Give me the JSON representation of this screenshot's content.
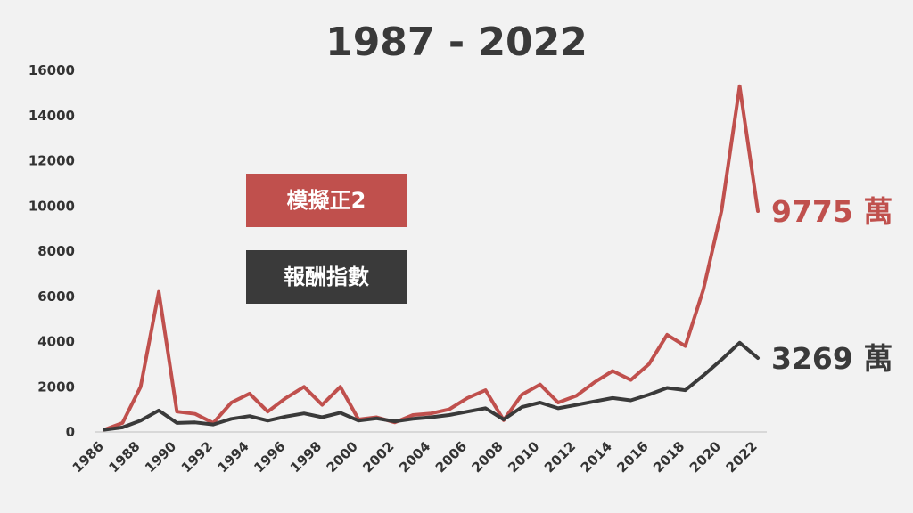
{
  "chart_data": {
    "type": "line",
    "title": "1987 - 2022",
    "xlabel": "",
    "ylabel": "",
    "xlim": [
      1986,
      2022
    ],
    "ylim": [
      0,
      16000
    ],
    "yticks": [
      "0",
      "2000",
      "4000",
      "6000",
      "8000",
      "10000",
      "12000",
      "14000",
      "16000"
    ],
    "xticks": [
      "1986",
      "1988",
      "1990",
      "1992",
      "1994",
      "1996",
      "1998",
      "2000",
      "2002",
      "2004",
      "2006",
      "2008",
      "2010",
      "2012",
      "2014",
      "2016",
      "2018",
      "2020",
      "2022"
    ],
    "grid": false,
    "legend_position": "center-left",
    "x": [
      1986,
      1987,
      1988,
      1989,
      1990,
      1991,
      1992,
      1993,
      1994,
      1995,
      1996,
      1997,
      1998,
      1999,
      2000,
      2001,
      2002,
      2003,
      2004,
      2005,
      2006,
      2007,
      2008,
      2009,
      2010,
      2011,
      2012,
      2013,
      2014,
      2015,
      2016,
      2017,
      2018,
      2019,
      2020,
      2021,
      2022
    ],
    "series": [
      {
        "name": "模擬正2",
        "color": "#c0504d",
        "end_label": "9775 萬",
        "values": [
          100,
          400,
          2000,
          6200,
          900,
          800,
          400,
          1300,
          1700,
          900,
          1500,
          2000,
          1200,
          2000,
          550,
          650,
          420,
          750,
          820,
          1000,
          1500,
          1850,
          520,
          1650,
          2100,
          1300,
          1600,
          2200,
          2700,
          2300,
          3000,
          4300,
          3800,
          6300,
          9800,
          15300,
          9775
        ]
      },
      {
        "name": "報酬指數",
        "color": "#3a3a3a",
        "end_label": "3269 萬",
        "values": [
          100,
          200,
          500,
          950,
          400,
          420,
          330,
          580,
          700,
          500,
          680,
          820,
          650,
          850,
          500,
          600,
          470,
          580,
          650,
          750,
          900,
          1050,
          550,
          1100,
          1300,
          1050,
          1200,
          1350,
          1500,
          1400,
          1650,
          1950,
          1850,
          2500,
          3200,
          3950,
          3269
        ]
      }
    ]
  }
}
